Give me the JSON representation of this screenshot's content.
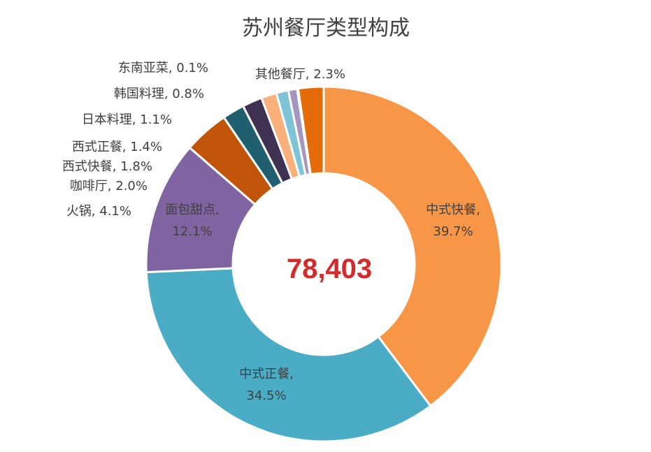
{
  "chart_data": {
    "type": "pie",
    "title": "苏州餐厅类型构成",
    "center_total": "78,403",
    "slices": [
      {
        "name": "中式快餐",
        "value": 39.7,
        "value_label": "39.7%",
        "color": "#f79646"
      },
      {
        "name": "中式正餐",
        "value": 34.5,
        "value_label": "34.5%",
        "color": "#4bacc6"
      },
      {
        "name": "面包甜点",
        "value": 12.1,
        "value_label": "12.1%",
        "color": "#8064a2"
      },
      {
        "name": "火锅",
        "value": 4.1,
        "value_label": "4.1%",
        "color": "#c0550a"
      },
      {
        "name": "咖啡厅",
        "value": 2.0,
        "value_label": "2.0%",
        "color": "#1f5f6f"
      },
      {
        "name": "西式快餐",
        "value": 1.8,
        "value_label": "1.8%",
        "color": "#3f3151"
      },
      {
        "name": "西式正餐",
        "value": 1.4,
        "value_label": "1.4%",
        "color": "#fab07a"
      },
      {
        "name": "日本料理",
        "value": 1.1,
        "value_label": "1.1%",
        "color": "#7ec3d6"
      },
      {
        "name": "韩国料理",
        "value": 0.8,
        "value_label": "0.8%",
        "color": "#a596c0"
      },
      {
        "name": "东南亚菜",
        "value": 0.1,
        "value_label": "0.1%",
        "color": "#e46c0a"
      },
      {
        "name": "其他餐厅",
        "value": 2.3,
        "value_label": "2.3%",
        "color": "#e46c0a"
      }
    ],
    "start_slice": "其他餐厅",
    "direction": "clockwise",
    "hole": "donut"
  }
}
